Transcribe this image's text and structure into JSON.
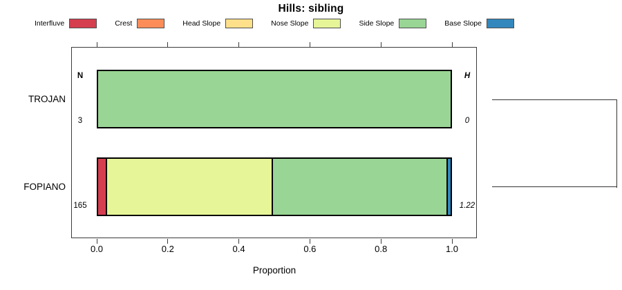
{
  "title": "Hills: sibling",
  "legend": {
    "items": [
      {
        "label": "Interfluve",
        "color": "#D53E4F"
      },
      {
        "label": "Crest",
        "color": "#FC8D59"
      },
      {
        "label": "Head Slope",
        "color": "#FEE08B"
      },
      {
        "label": "Nose Slope",
        "color": "#E6F598"
      },
      {
        "label": "Side Slope",
        "color": "#99D594"
      },
      {
        "label": "Base Slope",
        "color": "#3288BD"
      }
    ]
  },
  "axis": {
    "label": "Proportion",
    "ticks": [
      "0.0",
      "0.2",
      "0.4",
      "0.6",
      "0.8",
      "1.0"
    ]
  },
  "columns": {
    "n_header": "N",
    "h_header": "H"
  },
  "rows": [
    {
      "label": "TROJAN",
      "n": "3",
      "h": "0",
      "segments": [
        {
          "class": "Side Slope",
          "value": 1.0
        }
      ]
    },
    {
      "label": "FOPIANO",
      "n": "165",
      "h": "1.22",
      "segments": [
        {
          "class": "Interfluve",
          "value": 0.021
        },
        {
          "class": "Nose Slope",
          "value": 0.471
        },
        {
          "class": "Side Slope",
          "value": 0.496
        },
        {
          "class": "Base Slope",
          "value": 0.012
        }
      ]
    }
  ],
  "chart_data": {
    "type": "bar",
    "stacked": true,
    "orientation": "horizontal",
    "title": "Hills: sibling",
    "xlabel": "Proportion",
    "ylabel": "",
    "xlim": [
      0,
      1
    ],
    "x_ticks": [
      0.0,
      0.2,
      0.4,
      0.6,
      0.8,
      1.0
    ],
    "grid": false,
    "legend_position": "top",
    "categories": [
      "TROJAN",
      "FOPIANO"
    ],
    "series": [
      {
        "name": "Interfluve",
        "color": "#D53E4F",
        "values": [
          0,
          0.021
        ]
      },
      {
        "name": "Crest",
        "color": "#FC8D59",
        "values": [
          0,
          0
        ]
      },
      {
        "name": "Head Slope",
        "color": "#FEE08B",
        "values": [
          0,
          0
        ]
      },
      {
        "name": "Nose Slope",
        "color": "#E6F598",
        "values": [
          0,
          0.471
        ]
      },
      {
        "name": "Side Slope",
        "color": "#99D594",
        "values": [
          1.0,
          0.496
        ]
      },
      {
        "name": "Base Slope",
        "color": "#3288BD",
        "values": [
          0,
          0.012
        ]
      }
    ],
    "annotations": {
      "n_header": "N",
      "h_header": "H",
      "n_values": [
        "3",
        "165"
      ],
      "h_values": [
        "0",
        "1.22"
      ]
    },
    "dendrogram": {
      "description": "two-leaf cluster bracket joining TROJAN and FOPIANO rows at the right margin",
      "leaves": [
        "TROJAN",
        "FOPIANO"
      ]
    }
  }
}
